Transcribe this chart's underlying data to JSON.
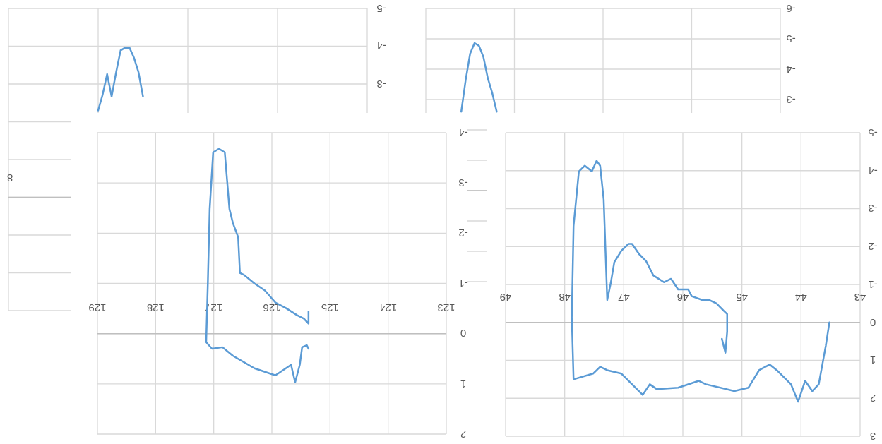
{
  "chart_data": [
    {
      "type": "line",
      "categories": [
        null,
        null,
        null,
        null,
        null,
        null,
        null,
        null,
        null,
        null,
        null,
        null,
        null,
        null,
        null,
        null,
        null,
        null,
        null,
        null,
        null,
        null,
        null,
        null,
        null,
        null,
        null,
        null,
        null,
        null,
        null,
        null,
        null,
        null,
        null,
        null,
        null,
        null,
        null,
        null,
        null,
        null,
        null,
        null,
        null,
        null,
        null,
        null,
        null,
        null,
        null,
        null,
        null,
        null,
        null,
        null,
        null,
        null,
        null,
        null,
        null,
        null,
        null,
        null,
        null,
        null,
        null,
        null,
        null,
        null,
        null,
        null,
        null,
        null,
        null,
        null,
        null,
        null,
        null,
        null,
        null
      ],
      "series": [
        {
          "color": "#5b9bd5",
          "values": [
            null,
            null,
            null,
            null,
            null,
            null,
            null,
            null,
            null,
            null,
            null,
            null,
            null,
            null,
            null,
            null,
            null,
            null,
            null,
            null,
            -2.3,
            -2.72,
            -3.26,
            -2.67,
            -3.31,
            -3.89,
            -3.96,
            -3.96,
            -3.69,
            -3.31,
            -2.67,
            null,
            null,
            null,
            null,
            null,
            null,
            null,
            null,
            null,
            null,
            null,
            null,
            null,
            null,
            null,
            null,
            null,
            null,
            null,
            null,
            null,
            null,
            null,
            null,
            null,
            null,
            null,
            null,
            null,
            null,
            null,
            null,
            null,
            null,
            null,
            null,
            null,
            null,
            null,
            null,
            null,
            null,
            null,
            null,
            null,
            null,
            null,
            null,
            null,
            null
          ]
        }
      ],
      "ylim": [
        3,
        -5
      ],
      "yticks": [
        -5,
        -4,
        -3,
        {
          "value": -2,
          "label": null
        },
        {
          "value": -1,
          "label": null
        },
        {
          "value": 0,
          "label": null
        },
        {
          "value": 1,
          "label": null
        },
        {
          "value": 2,
          "label": null
        },
        {
          "value": 3,
          "label": null
        }
      ],
      "grid": true,
      "annotations": [
        "8"
      ]
    },
    {
      "type": "line",
      "categories": [
        null,
        null,
        null,
        null,
        null,
        null,
        null,
        null,
        null,
        null,
        null,
        null,
        null,
        null,
        null,
        null,
        null,
        null,
        null,
        null,
        null,
        null,
        null,
        null,
        null,
        null,
        null,
        null,
        null,
        null,
        null,
        null,
        null,
        null,
        null,
        null,
        null,
        null,
        null,
        null,
        null,
        null,
        null,
        null,
        null,
        null,
        null,
        null,
        null,
        null,
        null,
        null,
        null,
        null,
        null,
        null,
        null,
        null,
        null,
        null,
        null,
        null,
        null,
        null,
        null,
        null,
        null,
        null,
        null,
        null,
        null,
        null,
        null,
        null,
        null,
        null,
        null,
        null,
        null,
        null,
        null
      ],
      "series": [
        {
          "color": "#5b9bd5",
          "values": [
            null,
            null,
            null,
            null,
            null,
            null,
            null,
            null,
            -2.6,
            -3.65,
            -4.51,
            -4.86,
            -4.77,
            -4.4,
            -3.7,
            -3.21,
            -2.6,
            null,
            null,
            null,
            null,
            null,
            null,
            null,
            null,
            null,
            null,
            null,
            null,
            null,
            null,
            null,
            null,
            null,
            null,
            null,
            null,
            null,
            null,
            null,
            null,
            null,
            null,
            null,
            null,
            null,
            null,
            null,
            null,
            null,
            null,
            null,
            null,
            null,
            null,
            null,
            null,
            null,
            null,
            null,
            null,
            null,
            null,
            null,
            null,
            null,
            null,
            null,
            null,
            null,
            null,
            null,
            null,
            null,
            null,
            null,
            null,
            null,
            null,
            null,
            null
          ]
        }
      ],
      "ylim": [
        3,
        -6
      ],
      "yticks": [
        -6,
        -5,
        -4,
        -3,
        {
          "value": -2,
          "label": null
        },
        {
          "value": -1,
          "label": null
        },
        {
          "value": 0,
          "label": null
        },
        {
          "value": 1,
          "label": null
        },
        {
          "value": 2,
          "label": null
        },
        {
          "value": 3,
          "label": null
        }
      ],
      "grid": true
    },
    {
      "type": "line",
      "x": [
        125.37,
        125.37,
        125.45,
        125.57,
        125.76,
        125.94,
        126.12,
        126.3,
        126.48,
        126.55,
        126.58,
        126.67,
        126.73,
        126.81,
        126.91,
        127.01,
        127.07,
        127.1,
        127.13,
        127.03,
        126.85,
        126.67,
        126.3,
        125.94,
        125.76,
        125.67,
        125.6,
        125.52,
        125.48,
        125.4,
        125.37
      ],
      "series": [
        {
          "color": "#5b9bd5",
          "values": [
            -0.44,
            -0.2,
            -0.3,
            -0.37,
            -0.51,
            -0.62,
            -0.86,
            -1.0,
            -1.17,
            -1.21,
            -1.92,
            -2.2,
            -2.48,
            -3.61,
            -3.68,
            -3.61,
            -2.48,
            -1.07,
            0.17,
            0.3,
            0.27,
            0.44,
            0.69,
            0.83,
            0.69,
            0.62,
            0.97,
            0.62,
            0.27,
            0.23,
            0.3
          ]
        }
      ],
      "xlim": [
        129,
        123
      ],
      "xticks": [
        123,
        124,
        125,
        126,
        127,
        128,
        129
      ],
      "ylim": [
        2,
        -4
      ],
      "yticks": [
        -4,
        -3,
        -2,
        -1,
        0,
        1,
        2
      ],
      "grid": true
    },
    {
      "type": "line",
      "x": [
        43.52,
        43.58,
        43.7,
        43.81,
        43.93,
        44.05,
        44.17,
        44.41,
        44.53,
        44.71,
        44.89,
        45.13,
        45.61,
        45.73,
        46.08,
        46.44,
        46.56,
        46.68,
        47.04,
        47.28,
        47.4,
        47.52,
        47.85,
        47.88,
        47.85,
        47.76,
        47.66,
        47.54,
        47.46,
        47.4,
        47.34,
        47.28,
        47.22,
        47.16,
        47.04,
        46.92,
        46.86,
        46.74,
        46.62,
        46.5,
        46.32,
        46.2,
        46.08,
        45.91,
        45.85,
        45.67,
        45.55,
        45.43,
        45.31,
        45.25,
        45.25,
        45.28,
        45.34
      ],
      "series": [
        {
          "color": "#5b9bd5",
          "values": [
            0,
            0.61,
            1.63,
            1.81,
            1.54,
            2.09,
            1.63,
            1.26,
            1.11,
            1.26,
            1.72,
            1.81,
            1.63,
            1.54,
            1.72,
            1.76,
            1.63,
            1.91,
            1.35,
            1.26,
            1.17,
            1.35,
            1.5,
            -0.13,
            -2.54,
            -3.98,
            -4.13,
            -3.98,
            -4.26,
            -4.13,
            -3.24,
            -0.59,
            -1.04,
            -1.59,
            -1.89,
            -2.07,
            -2.07,
            -1.8,
            -1.61,
            -1.24,
            -1.06,
            -1.15,
            -0.87,
            -0.87,
            -0.69,
            -0.59,
            -0.59,
            -0.5,
            -0.31,
            -0.22,
            0.24,
            0.8,
            0.43
          ]
        }
      ],
      "xlim": [
        49,
        43
      ],
      "xticks": [
        43,
        44,
        45,
        46,
        47,
        48,
        49
      ],
      "ylim": [
        3,
        -5
      ],
      "yticks": [
        -5,
        -4,
        -3,
        -2,
        -1,
        0,
        1,
        2,
        3
      ],
      "grid": true
    }
  ]
}
